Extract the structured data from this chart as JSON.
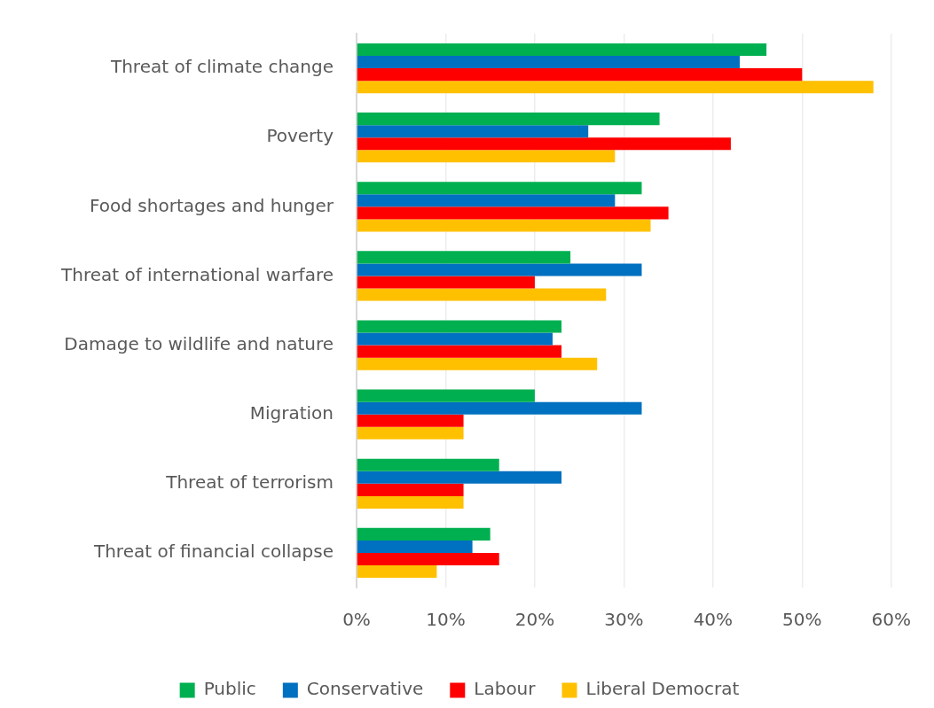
{
  "chart_data": {
    "type": "bar",
    "orientation": "horizontal",
    "categories": [
      "Threat of climate change",
      "Poverty",
      "Food shortages and hunger",
      "Threat of international warfare",
      "Damage to wildlife and nature",
      "Migration",
      "Threat of terrorism",
      "Threat of financial collapse"
    ],
    "series": [
      {
        "name": "Public",
        "color": "#00b050",
        "values": [
          46,
          34,
          32,
          24,
          23,
          20,
          16,
          15
        ]
      },
      {
        "name": "Conservative",
        "color": "#0070c0",
        "values": [
          43,
          26,
          29,
          32,
          22,
          32,
          23,
          13
        ]
      },
      {
        "name": "Labour",
        "color": "#ff0000",
        "values": [
          50,
          42,
          35,
          20,
          23,
          12,
          12,
          16
        ]
      },
      {
        "name": "Liberal Democrat",
        "color": "#ffc000",
        "values": [
          58,
          29,
          33,
          28,
          27,
          12,
          12,
          9
        ]
      }
    ],
    "xlim": [
      0,
      60
    ],
    "xticks": [
      {
        "value": 0,
        "label": "0%"
      },
      {
        "value": 10,
        "label": "10%"
      },
      {
        "value": 20,
        "label": "20%"
      },
      {
        "value": 30,
        "label": "30%"
      },
      {
        "value": 40,
        "label": "40%"
      },
      {
        "value": 50,
        "label": "50%"
      },
      {
        "value": 60,
        "label": "60%"
      }
    ],
    "grid": "x",
    "legend": "bottom"
  }
}
